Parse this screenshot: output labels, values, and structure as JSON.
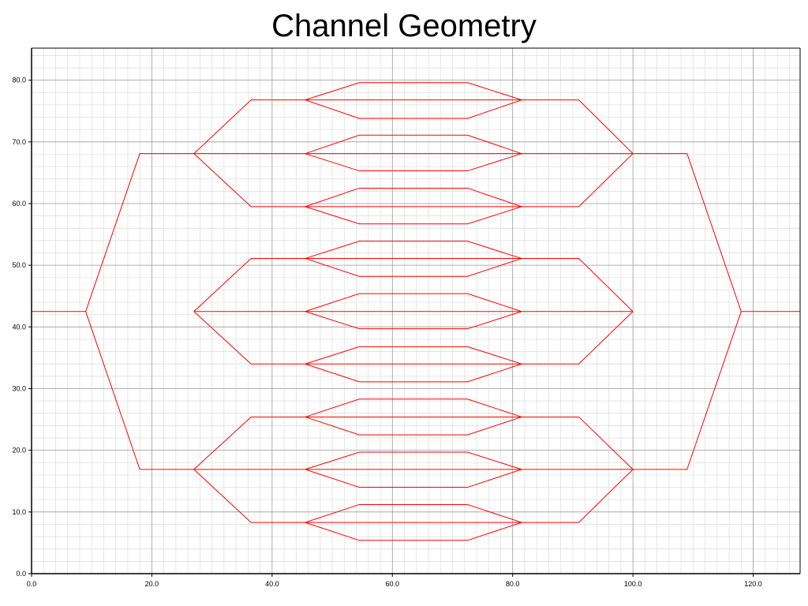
{
  "chart_data": {
    "type": "line",
    "title": "Channel Geometry",
    "xlabel": "",
    "ylabel": "",
    "xlim": [
      0,
      127.8
    ],
    "ylim": [
      0,
      85.2
    ],
    "grid": "major and minor",
    "colors": {
      "series": "#ff0000",
      "major_grid": "#9a9a9a",
      "minor_grid": "#dcdcdc",
      "axis": "#000000"
    },
    "x_ticks": [
      {
        "value": 0,
        "label": "0.0"
      },
      {
        "value": 20,
        "label": "20.0"
      },
      {
        "value": 40,
        "label": "40.0"
      },
      {
        "value": 60,
        "label": "60.0"
      },
      {
        "value": 80,
        "label": "80.0"
      },
      {
        "value": 100,
        "label": "100.0"
      },
      {
        "value": 120,
        "label": "120.0"
      }
    ],
    "y_ticks": [
      {
        "value": 0,
        "label": "0.0"
      },
      {
        "value": 10,
        "label": "10.0"
      },
      {
        "value": 20,
        "label": "20.0"
      },
      {
        "value": 30,
        "label": "30.0"
      },
      {
        "value": 40,
        "label": "40.0"
      },
      {
        "value": 50,
        "label": "50.0"
      },
      {
        "value": 60,
        "label": "60.0"
      },
      {
        "value": 70,
        "label": "70.0"
      },
      {
        "value": 80,
        "label": "80.0"
      }
    ],
    "series": [
      {
        "values": [
          [
            0,
            42.5
          ],
          [
            9,
            42.5
          ]
        ]
      },
      {
        "values": [
          [
            118,
            42.5
          ],
          [
            127.8,
            42.5
          ]
        ]
      },
      {
        "values": [
          [
            9,
            42.5
          ],
          [
            18,
            68.1
          ],
          [
            27,
            68.1
          ]
        ]
      },
      {
        "values": [
          [
            9,
            42.5
          ],
          [
            18,
            16.9
          ],
          [
            27,
            16.9
          ]
        ]
      },
      {
        "values": [
          [
            100,
            68.1
          ],
          [
            109,
            68.1
          ],
          [
            118,
            42.5
          ]
        ]
      },
      {
        "values": [
          [
            100,
            16.9
          ],
          [
            109,
            16.9
          ],
          [
            118,
            42.5
          ]
        ]
      },
      {
        "values": [
          [
            27,
            68.1
          ],
          [
            36.5,
            76.8
          ],
          [
            45.5,
            76.8
          ]
        ]
      },
      {
        "values": [
          [
            27,
            68.1
          ],
          [
            45.5,
            68.1
          ]
        ]
      },
      {
        "values": [
          [
            27,
            68.1
          ],
          [
            36.5,
            59.5
          ],
          [
            45.5,
            59.5
          ]
        ]
      },
      {
        "values": [
          [
            81.5,
            76.8
          ],
          [
            91,
            76.8
          ],
          [
            100,
            68.1
          ]
        ]
      },
      {
        "values": [
          [
            81.5,
            68.1
          ],
          [
            100,
            68.1
          ]
        ]
      },
      {
        "values": [
          [
            81.5,
            59.5
          ],
          [
            91,
            59.5
          ],
          [
            100,
            68.1
          ]
        ]
      },
      {
        "values": [
          [
            27,
            42.5
          ],
          [
            36.5,
            51.1
          ],
          [
            45.5,
            51.1
          ]
        ]
      },
      {
        "values": [
          [
            27,
            42.5
          ],
          [
            45.5,
            42.5
          ]
        ]
      },
      {
        "values": [
          [
            27,
            42.5
          ],
          [
            36.5,
            34.0
          ],
          [
            45.5,
            34.0
          ]
        ]
      },
      {
        "values": [
          [
            81.5,
            51.1
          ],
          [
            91,
            51.1
          ],
          [
            100,
            42.5
          ]
        ]
      },
      {
        "values": [
          [
            81.5,
            42.5
          ],
          [
            100,
            42.5
          ]
        ]
      },
      {
        "values": [
          [
            81.5,
            34.0
          ],
          [
            91,
            34.0
          ],
          [
            100,
            42.5
          ]
        ]
      },
      {
        "values": [
          [
            27,
            16.9
          ],
          [
            36.5,
            25.4
          ],
          [
            45.5,
            25.4
          ]
        ]
      },
      {
        "values": [
          [
            27,
            16.9
          ],
          [
            45.5,
            16.9
          ]
        ]
      },
      {
        "values": [
          [
            27,
            16.9
          ],
          [
            36.5,
            8.3
          ],
          [
            45.5,
            8.3
          ]
        ]
      },
      {
        "values": [
          [
            81.5,
            25.4
          ],
          [
            91,
            25.4
          ],
          [
            100,
            16.9
          ]
        ]
      },
      {
        "values": [
          [
            81.5,
            16.9
          ],
          [
            100,
            16.9
          ]
        ]
      },
      {
        "values": [
          [
            81.5,
            8.3
          ],
          [
            91,
            8.3
          ],
          [
            100,
            16.9
          ]
        ]
      },
      {
        "values": [
          [
            45.5,
            76.8
          ],
          [
            54.5,
            79.6
          ],
          [
            72.5,
            79.6
          ],
          [
            81.5,
            76.8
          ]
        ]
      },
      {
        "values": [
          [
            45.5,
            76.8
          ],
          [
            81.5,
            76.8
          ]
        ]
      },
      {
        "values": [
          [
            45.5,
            76.8
          ],
          [
            54.5,
            73.8
          ],
          [
            72.5,
            73.8
          ],
          [
            81.5,
            76.8
          ]
        ]
      },
      {
        "values": [
          [
            45.5,
            68.1
          ],
          [
            54.5,
            71.1
          ],
          [
            72.5,
            71.1
          ],
          [
            81.5,
            68.1
          ]
        ]
      },
      {
        "values": [
          [
            45.5,
            68.1
          ],
          [
            81.5,
            68.1
          ]
        ]
      },
      {
        "values": [
          [
            45.5,
            68.1
          ],
          [
            54.5,
            65.3
          ],
          [
            72.5,
            65.3
          ],
          [
            81.5,
            68.1
          ]
        ]
      },
      {
        "values": [
          [
            45.5,
            59.5
          ],
          [
            54.5,
            62.5
          ],
          [
            72.5,
            62.5
          ],
          [
            81.5,
            59.5
          ]
        ]
      },
      {
        "values": [
          [
            45.5,
            59.5
          ],
          [
            81.5,
            59.5
          ]
        ]
      },
      {
        "values": [
          [
            45.5,
            59.5
          ],
          [
            54.5,
            56.7
          ],
          [
            72.5,
            56.7
          ],
          [
            81.5,
            59.5
          ]
        ]
      },
      {
        "values": [
          [
            45.5,
            51.1
          ],
          [
            54.5,
            53.9
          ],
          [
            72.5,
            53.9
          ],
          [
            81.5,
            51.1
          ]
        ]
      },
      {
        "values": [
          [
            45.5,
            51.1
          ],
          [
            81.5,
            51.1
          ]
        ]
      },
      {
        "values": [
          [
            45.5,
            51.1
          ],
          [
            54.5,
            48.2
          ],
          [
            72.5,
            48.2
          ],
          [
            81.5,
            51.1
          ]
        ]
      },
      {
        "values": [
          [
            45.5,
            42.5
          ],
          [
            54.5,
            45.4
          ],
          [
            72.5,
            45.4
          ],
          [
            81.5,
            42.5
          ]
        ]
      },
      {
        "values": [
          [
            45.5,
            42.5
          ],
          [
            81.5,
            42.5
          ]
        ]
      },
      {
        "values": [
          [
            45.5,
            42.5
          ],
          [
            54.5,
            39.7
          ],
          [
            72.5,
            39.7
          ],
          [
            81.5,
            42.5
          ]
        ]
      },
      {
        "values": [
          [
            45.5,
            34.0
          ],
          [
            54.5,
            36.8
          ],
          [
            72.5,
            36.8
          ],
          [
            81.5,
            34.0
          ]
        ]
      },
      {
        "values": [
          [
            45.5,
            34.0
          ],
          [
            81.5,
            34.0
          ]
        ]
      },
      {
        "values": [
          [
            45.5,
            34.0
          ],
          [
            54.5,
            31.1
          ],
          [
            72.5,
            31.1
          ],
          [
            81.5,
            34.0
          ]
        ]
      },
      {
        "values": [
          [
            45.5,
            25.4
          ],
          [
            54.5,
            28.3
          ],
          [
            72.5,
            28.3
          ],
          [
            81.5,
            25.4
          ]
        ]
      },
      {
        "values": [
          [
            45.5,
            25.4
          ],
          [
            81.5,
            25.4
          ]
        ]
      },
      {
        "values": [
          [
            45.5,
            25.4
          ],
          [
            54.5,
            22.5
          ],
          [
            72.5,
            22.5
          ],
          [
            81.5,
            25.4
          ]
        ]
      },
      {
        "values": [
          [
            45.5,
            16.9
          ],
          [
            54.5,
            19.7
          ],
          [
            72.5,
            19.7
          ],
          [
            81.5,
            16.9
          ]
        ]
      },
      {
        "values": [
          [
            45.5,
            16.9
          ],
          [
            81.5,
            16.9
          ]
        ]
      },
      {
        "values": [
          [
            45.5,
            16.9
          ],
          [
            54.5,
            14.0
          ],
          [
            72.5,
            14.0
          ],
          [
            81.5,
            16.9
          ]
        ]
      },
      {
        "values": [
          [
            45.5,
            8.3
          ],
          [
            54.5,
            11.2
          ],
          [
            72.5,
            11.2
          ],
          [
            81.5,
            8.3
          ]
        ]
      },
      {
        "values": [
          [
            45.5,
            8.3
          ],
          [
            81.5,
            8.3
          ]
        ]
      },
      {
        "values": [
          [
            45.5,
            8.3
          ],
          [
            54.5,
            5.4
          ],
          [
            72.5,
            5.4
          ],
          [
            81.5,
            8.3
          ]
        ]
      }
    ]
  }
}
